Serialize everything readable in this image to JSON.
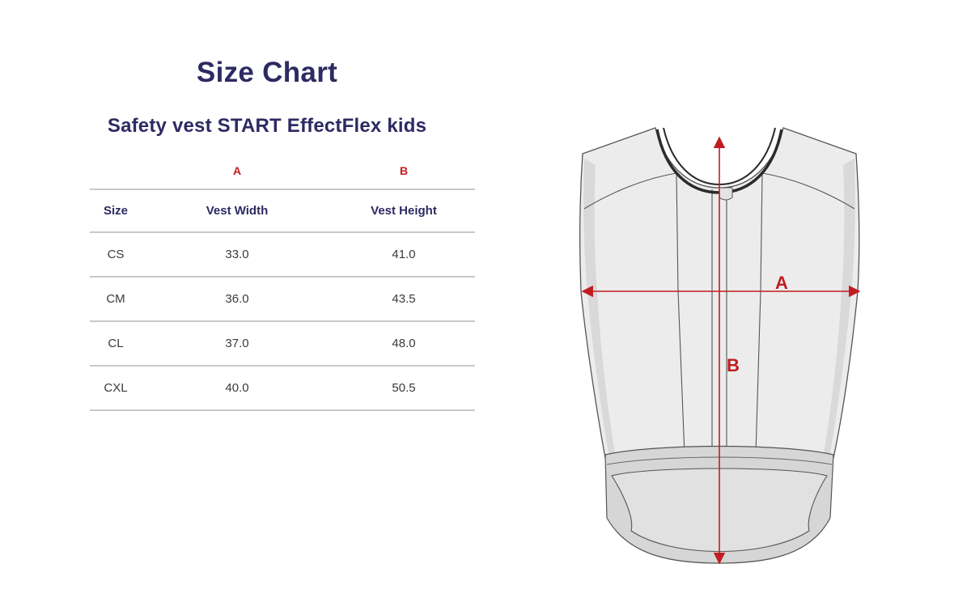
{
  "title": "Size Chart",
  "subtitle": "Safety vest START EffectFlex kids",
  "table": {
    "letters": [
      "",
      "A",
      "B"
    ],
    "headers": [
      "Size",
      "Vest Width",
      "Vest Height"
    ],
    "rows": [
      {
        "size": "CS",
        "width": "33.0",
        "height": "41.0"
      },
      {
        "size": "CM",
        "width": "36.0",
        "height": "43.5"
      },
      {
        "size": "CL",
        "width": "37.0",
        "height": "48.0"
      },
      {
        "size": "CXL",
        "width": "40.0",
        "height": "50.5"
      }
    ]
  },
  "diagram": {
    "label_a": "A",
    "label_b": "B"
  },
  "colors": {
    "title": "#2e2a62",
    "accent_red": "#c11c22",
    "rule": "#c8c8c8",
    "vest_fill": "#ececec"
  }
}
